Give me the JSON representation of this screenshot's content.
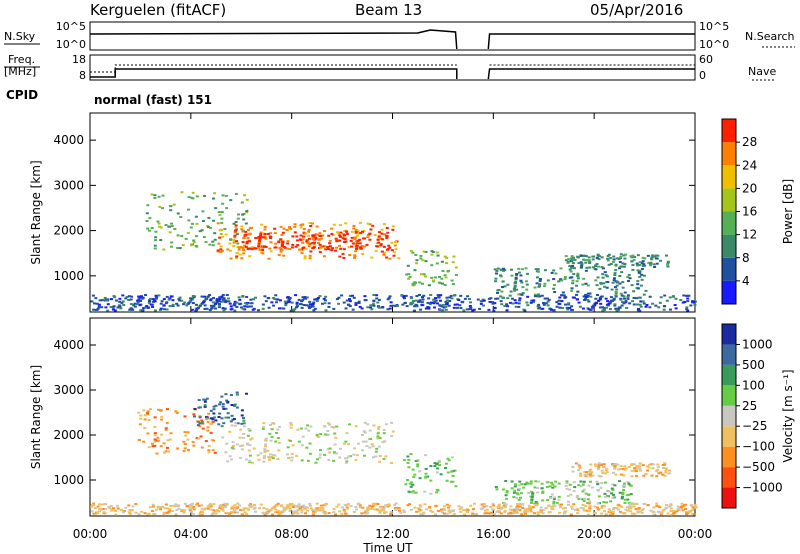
{
  "header": {
    "station": "Kerguelen (fitACF)",
    "beam": "Beam 13",
    "date": "05/Apr/2016"
  },
  "side_labels": {
    "nsky": "N.Sky",
    "nsearch": "N.Search",
    "freq": "Freq.",
    "mhz": "[MHz]",
    "nave": "Nave",
    "cpid": "CPID"
  },
  "cpid_text": "normal (fast) 151",
  "noise_panel": {
    "left_ticks": [
      "10^5",
      "10^0"
    ],
    "right_ticks": [
      "10^5",
      "10^0"
    ]
  },
  "freq_panel": {
    "left_ticks": [
      "18",
      "8"
    ],
    "right_ticks": [
      "60",
      "0"
    ]
  },
  "time_axis": {
    "label": "Time UT",
    "ticks": [
      "00:00",
      "04:00",
      "08:00",
      "12:00",
      "16:00",
      "20:00",
      "00:00"
    ]
  },
  "chart_data": [
    {
      "type": "heatmap",
      "name": "power",
      "ylabel": "Slant Range [km]",
      "yticks": [
        "1000",
        "2000",
        "3000",
        "4000"
      ],
      "ylim": [
        200,
        4600
      ],
      "xlim_hours": [
        0,
        24
      ],
      "colorbar_label": "Power [dB]",
      "colorbar_ticks": [
        "4",
        "8",
        "12",
        "16",
        "20",
        "24",
        "28"
      ],
      "colors": [
        "#1a1aff",
        "#2050a0",
        "#3a8a6a",
        "#55b055",
        "#a5c51a",
        "#f0c000",
        "#ff8000",
        "#ff2000"
      ],
      "regions": [
        {
          "t0": 2.2,
          "t1": 6.2,
          "r0": 1600,
          "r1": 2900,
          "level": 3
        },
        {
          "t0": 5.0,
          "t1": 12.2,
          "r0": 1400,
          "r1": 2200,
          "level": 6
        },
        {
          "t0": 6.0,
          "t1": 11.8,
          "r0": 1600,
          "r1": 2000,
          "level": 7
        },
        {
          "t0": 12.5,
          "t1": 14.5,
          "r0": 800,
          "r1": 1600,
          "level": 3
        },
        {
          "t0": 16.0,
          "t1": 22.0,
          "r0": 600,
          "r1": 1200,
          "level": 2
        },
        {
          "t0": 18.8,
          "t1": 23.0,
          "r0": 1200,
          "r1": 1500,
          "level": 2
        },
        {
          "t0": 0.0,
          "t1": 24.0,
          "r0": 250,
          "r1": 600,
          "level": 1
        }
      ]
    },
    {
      "type": "heatmap",
      "name": "velocity",
      "ylabel": "Slant Range [km]",
      "yticks": [
        "1000",
        "2000",
        "3000",
        "4000"
      ],
      "ylim": [
        200,
        4600
      ],
      "xlim_hours": [
        0,
        24
      ],
      "colorbar_label": "Velocity [m s⁻¹]",
      "colorbar_ticks": [
        "1000",
        "500",
        "100",
        "25",
        "−25",
        "−100",
        "−500",
        "−1000"
      ],
      "colors": [
        "#1a2aa0",
        "#3a6aa0",
        "#3a9a5a",
        "#66cc44",
        "#c8c8c0",
        "#f0c060",
        "#ff9020",
        "#ff5010",
        "#ee1010"
      ],
      "regions": [
        {
          "t0": 1.8,
          "t1": 5.0,
          "r0": 1600,
          "r1": 2600,
          "level": 6
        },
        {
          "t0": 4.0,
          "t1": 6.2,
          "r0": 2200,
          "r1": 3000,
          "level": 1
        },
        {
          "t0": 5.2,
          "t1": 12.0,
          "r0": 1400,
          "r1": 2300,
          "level": 4
        },
        {
          "t0": 12.4,
          "t1": 14.5,
          "r0": 700,
          "r1": 1600,
          "level": 3
        },
        {
          "t0": 16.0,
          "t1": 21.5,
          "r0": 500,
          "r1": 1000,
          "level": 3
        },
        {
          "t0": 19.0,
          "t1": 23.0,
          "r0": 1100,
          "r1": 1400,
          "level": 5
        },
        {
          "t0": 0.0,
          "t1": 24.0,
          "r0": 250,
          "r1": 500,
          "level": 5
        }
      ]
    }
  ]
}
